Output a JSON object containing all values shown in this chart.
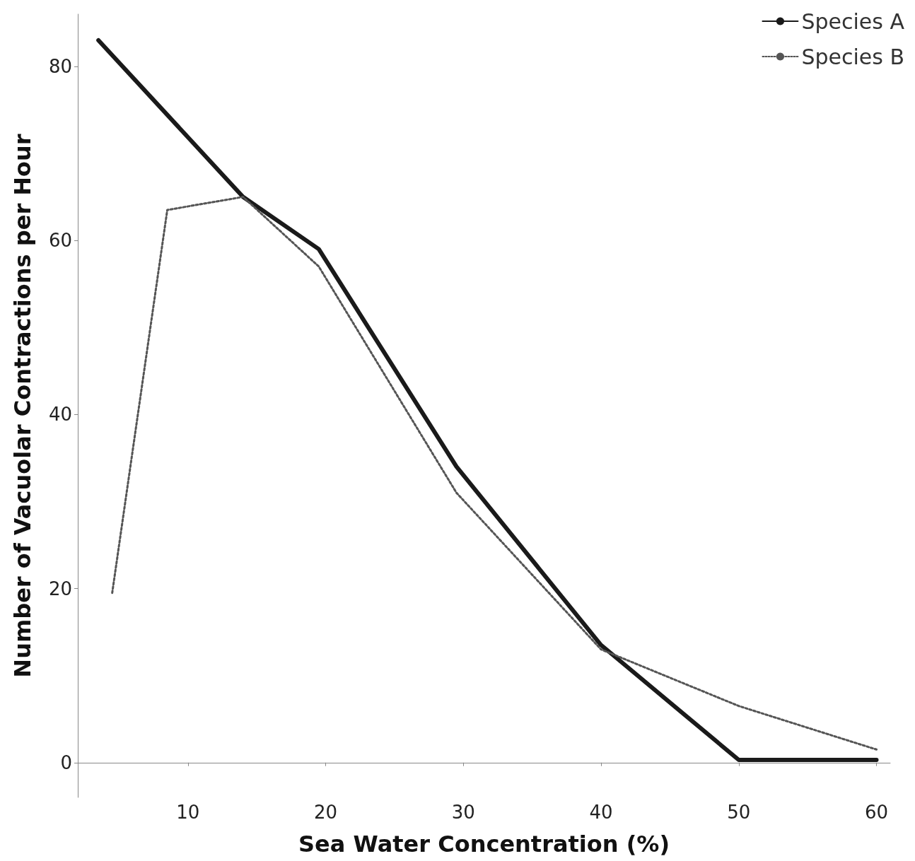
{
  "chart_data": {
    "type": "line",
    "xlabel": "Sea Water Concentration (%)",
    "ylabel": "Number of Vacuolar Contractions per Hour",
    "xlim": [
      2,
      61
    ],
    "xticks": [
      10,
      20,
      30,
      40,
      50,
      60
    ],
    "ylim": [
      -4,
      86
    ],
    "yticks": [
      0,
      20,
      40,
      60,
      80
    ],
    "grid": false,
    "legend": "top right",
    "marker": "none",
    "series": [
      {
        "name": "Species A",
        "color": "#1a1a1a",
        "line_style": "solid",
        "x": [
          3.5,
          14,
          19.5,
          29.5,
          40,
          50,
          60
        ],
        "values": [
          83,
          65,
          59,
          34,
          13.5,
          0.3,
          0.3
        ]
      },
      {
        "name": "Species B",
        "color": "#555555",
        "line_style": "dotted",
        "x": [
          4.5,
          8.5,
          14,
          19.5,
          29.5,
          40,
          50,
          60
        ],
        "values": [
          19.5,
          63.5,
          65,
          57,
          31,
          13,
          6.5,
          1.5
        ]
      }
    ]
  }
}
